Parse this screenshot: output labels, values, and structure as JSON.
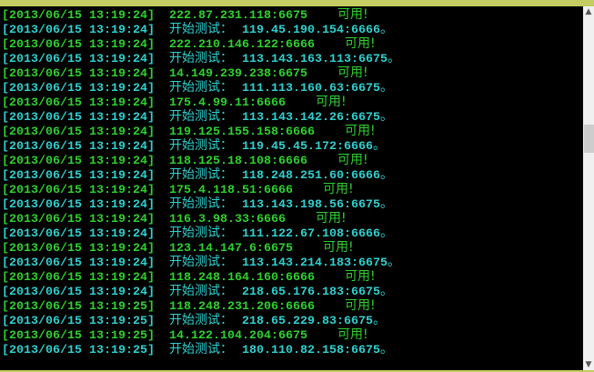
{
  "colors": {
    "ok_line": "#2ed12e",
    "test_line": "#30d0d0",
    "frame": "#c3cc62"
  },
  "labels": {
    "test_prefix": "开始测试：",
    "ok_suffix": "可用!",
    "test_suffix": "。"
  },
  "lines": [
    {
      "ts": "[2013/06/15 13:19:24]",
      "type": "ok",
      "ip": "222.87.231.118:6675"
    },
    {
      "ts": "[2013/06/15 13:19:24]",
      "type": "test",
      "ip": "119.45.190.154:6666"
    },
    {
      "ts": "[2013/06/15 13:19:24]",
      "type": "ok",
      "ip": "222.210.146.122:6666"
    },
    {
      "ts": "[2013/06/15 13:19:24]",
      "type": "test",
      "ip": "113.143.163.113:6675"
    },
    {
      "ts": "[2013/06/15 13:19:24]",
      "type": "ok",
      "ip": "14.149.239.238:6675"
    },
    {
      "ts": "[2013/06/15 13:19:24]",
      "type": "test",
      "ip": "111.113.160.63:6675"
    },
    {
      "ts": "[2013/06/15 13:19:24]",
      "type": "ok",
      "ip": "175.4.99.11:6666"
    },
    {
      "ts": "[2013/06/15 13:19:24]",
      "type": "test",
      "ip": "113.143.142.26:6675"
    },
    {
      "ts": "[2013/06/15 13:19:24]",
      "type": "ok",
      "ip": "119.125.155.158:6666"
    },
    {
      "ts": "[2013/06/15 13:19:24]",
      "type": "test",
      "ip": "119.45.45.172:6666"
    },
    {
      "ts": "[2013/06/15 13:19:24]",
      "type": "ok",
      "ip": "118.125.18.108:6666"
    },
    {
      "ts": "[2013/06/15 13:19:24]",
      "type": "test",
      "ip": "118.248.251.60:6666"
    },
    {
      "ts": "[2013/06/15 13:19:24]",
      "type": "ok",
      "ip": "175.4.118.51:6666"
    },
    {
      "ts": "[2013/06/15 13:19:24]",
      "type": "test",
      "ip": "113.143.198.56:6675"
    },
    {
      "ts": "[2013/06/15 13:19:24]",
      "type": "ok",
      "ip": "116.3.98.33:6666"
    },
    {
      "ts": "[2013/06/15 13:19:24]",
      "type": "test",
      "ip": "111.122.67.108:6666"
    },
    {
      "ts": "[2013/06/15 13:19:24]",
      "type": "ok",
      "ip": "123.14.147.6:6675"
    },
    {
      "ts": "[2013/06/15 13:19:24]",
      "type": "test",
      "ip": "113.143.214.183:6675"
    },
    {
      "ts": "[2013/06/15 13:19:24]",
      "type": "ok",
      "ip": "118.248.164.160:6666"
    },
    {
      "ts": "[2013/06/15 13:19:24]",
      "type": "test",
      "ip": "218.65.176.183:6675"
    },
    {
      "ts": "[2013/06/15 13:19:25]",
      "type": "ok",
      "ip": "118.248.231.206:6666"
    },
    {
      "ts": "[2013/06/15 13:19:25]",
      "type": "test",
      "ip": "218.65.229.83:6675"
    },
    {
      "ts": "[2013/06/15 13:19:25]",
      "type": "ok",
      "ip": "14.122.104.204:6675"
    },
    {
      "ts": "[2013/06/15 13:19:25]",
      "type": "test",
      "ip": "180.110.82.158:6675"
    }
  ],
  "scrollbar": {
    "up_icon": "chevron-up-icon",
    "down_icon": "chevron-down-icon"
  }
}
